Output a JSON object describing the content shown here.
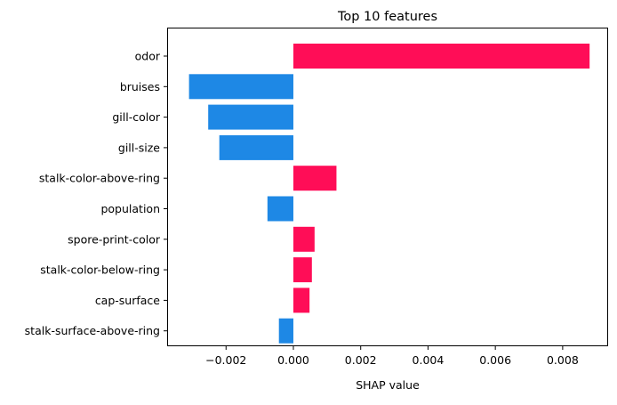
{
  "chart_data": {
    "type": "bar",
    "orientation": "horizontal",
    "title": "Top 10 features",
    "xlabel": "SHAP value",
    "ylabel": "",
    "categories": [
      "odor",
      "bruises",
      "gill-color",
      "gill-size",
      "stalk-color-above-ring",
      "population",
      "spore-print-color",
      "stalk-color-below-ring",
      "cap-surface",
      "stalk-surface-above-ring"
    ],
    "values": [
      0.0088,
      -0.0031,
      -0.00253,
      -0.0022,
      0.00128,
      -0.00077,
      0.00063,
      0.00055,
      0.00048,
      -0.00043
    ],
    "xlim": [
      -0.00375,
      0.00935
    ],
    "xticks": [
      -0.002,
      0.0,
      0.002,
      0.004,
      0.006,
      0.008
    ],
    "xtick_labels": [
      "−0.002",
      "0.000",
      "0.002",
      "0.004",
      "0.006",
      "0.008"
    ],
    "grid": false,
    "legend": "none",
    "colors": {
      "positive": "#ff0d57",
      "negative": "#1e88e5"
    }
  }
}
